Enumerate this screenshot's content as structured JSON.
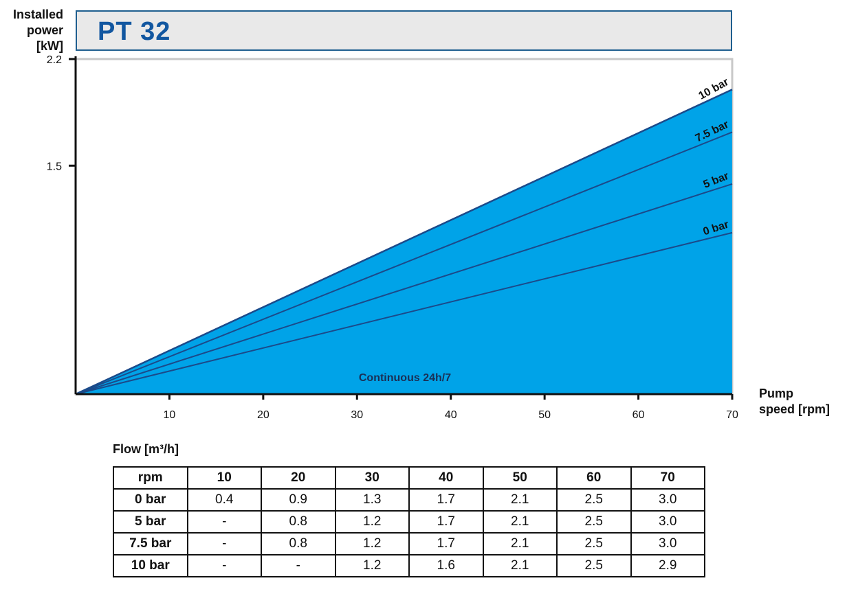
{
  "header": {
    "title": "PT 32",
    "y_axis_label": [
      "Installed",
      "power",
      "[kW]"
    ],
    "x_axis_label": [
      "Pump",
      "speed [rpm]"
    ]
  },
  "chart_data": {
    "type": "area",
    "title": "PT 32",
    "xlabel": "Pump speed [rpm]",
    "ylabel": "Installed power [kW]",
    "xlim": [
      0,
      70
    ],
    "ylim": [
      0,
      2.2
    ],
    "x_ticks": [
      10,
      20,
      30,
      40,
      50,
      60,
      70
    ],
    "y_ticks": [
      1.5,
      2.2
    ],
    "x_tick_labels": [
      "10",
      "20",
      "30",
      "40",
      "50",
      "60",
      "70"
    ],
    "y_tick_labels": [
      "1.5",
      "2.2"
    ],
    "fill_color": "#00a3e8",
    "line_color": "#1b4a8a",
    "grid": false,
    "region_label": "Continuous 24h/7",
    "series": [
      {
        "name": "10 bar",
        "x": [
          0,
          70
        ],
        "y": [
          0,
          2.0
        ]
      },
      {
        "name": "7.5 bar",
        "x": [
          0,
          70
        ],
        "y": [
          0,
          1.72
        ]
      },
      {
        "name": "5 bar",
        "x": [
          0,
          70
        ],
        "y": [
          0,
          1.38
        ]
      },
      {
        "name": "0 bar",
        "x": [
          0,
          70
        ],
        "y": [
          0,
          1.06
        ]
      }
    ]
  },
  "flow_table": {
    "title": "Flow [m³/h]",
    "header": [
      "rpm",
      "10",
      "20",
      "30",
      "40",
      "50",
      "60",
      "70"
    ],
    "rows": [
      {
        "label": "0 bar",
        "values": [
          "0.4",
          "0.9",
          "1.3",
          "1.7",
          "2.1",
          "2.5",
          "3.0"
        ]
      },
      {
        "label": "5 bar",
        "values": [
          "-",
          "0.8",
          "1.2",
          "1.7",
          "2.1",
          "2.5",
          "3.0"
        ]
      },
      {
        "label": "7.5 bar",
        "values": [
          "-",
          "0.8",
          "1.2",
          "1.7",
          "2.1",
          "2.5",
          "3.0"
        ]
      },
      {
        "label": "10 bar",
        "values": [
          "-",
          "-",
          "1.2",
          "1.6",
          "2.1",
          "2.5",
          "2.9"
        ]
      }
    ]
  }
}
